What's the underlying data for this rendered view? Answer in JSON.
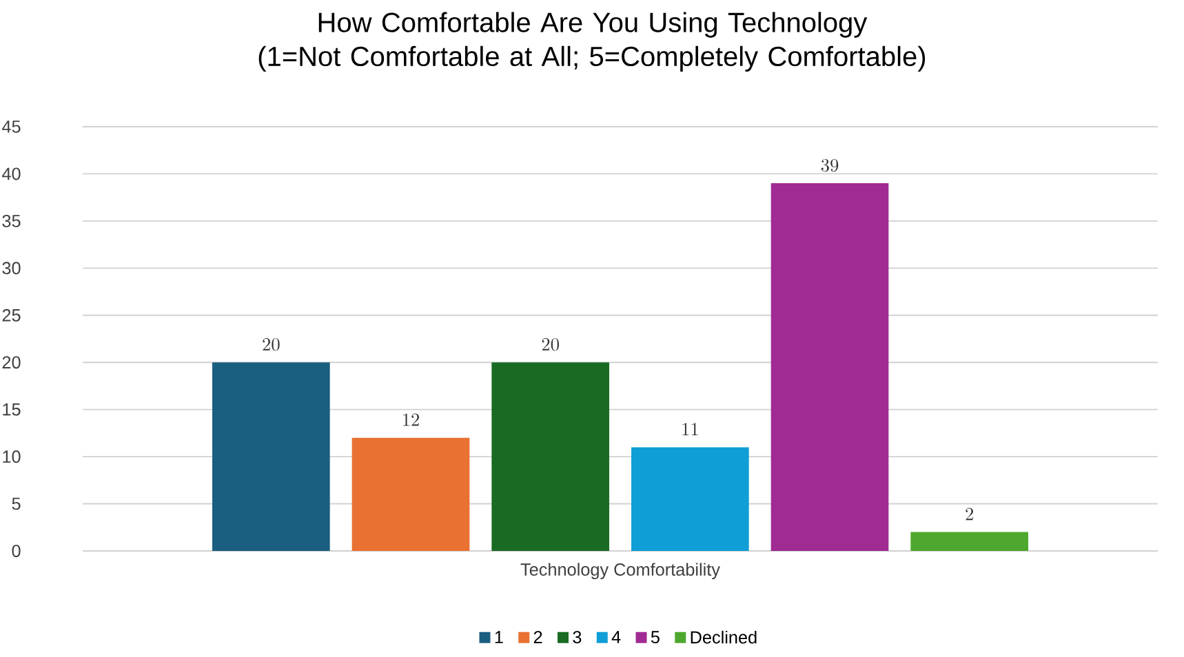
{
  "chart_data": {
    "type": "bar",
    "title": "How Comfortable Are You Using Technology\n(1=Not Comfortable at All; 5=Completely Comfortable)",
    "categories": [
      "Technology Comfortability"
    ],
    "series": [
      {
        "name": "1",
        "color": "#1a5e80",
        "values": [
          20
        ]
      },
      {
        "name": "2",
        "color": "#e97132",
        "values": [
          12
        ]
      },
      {
        "name": "3",
        "color": "#196b24",
        "values": [
          20
        ]
      },
      {
        "name": "4",
        "color": "#0f9ed5",
        "values": [
          11
        ]
      },
      {
        "name": "5",
        "color": "#a02b93",
        "values": [
          39
        ]
      },
      {
        "name": "Declined",
        "color": "#4ea72e",
        "values": [
          2
        ]
      }
    ],
    "ylim": [
      0,
      45
    ],
    "yticks": [
      0,
      5,
      10,
      15,
      20,
      25,
      30,
      35,
      40,
      45
    ],
    "grid": "y",
    "legend": "bottom",
    "data_labels": true
  }
}
